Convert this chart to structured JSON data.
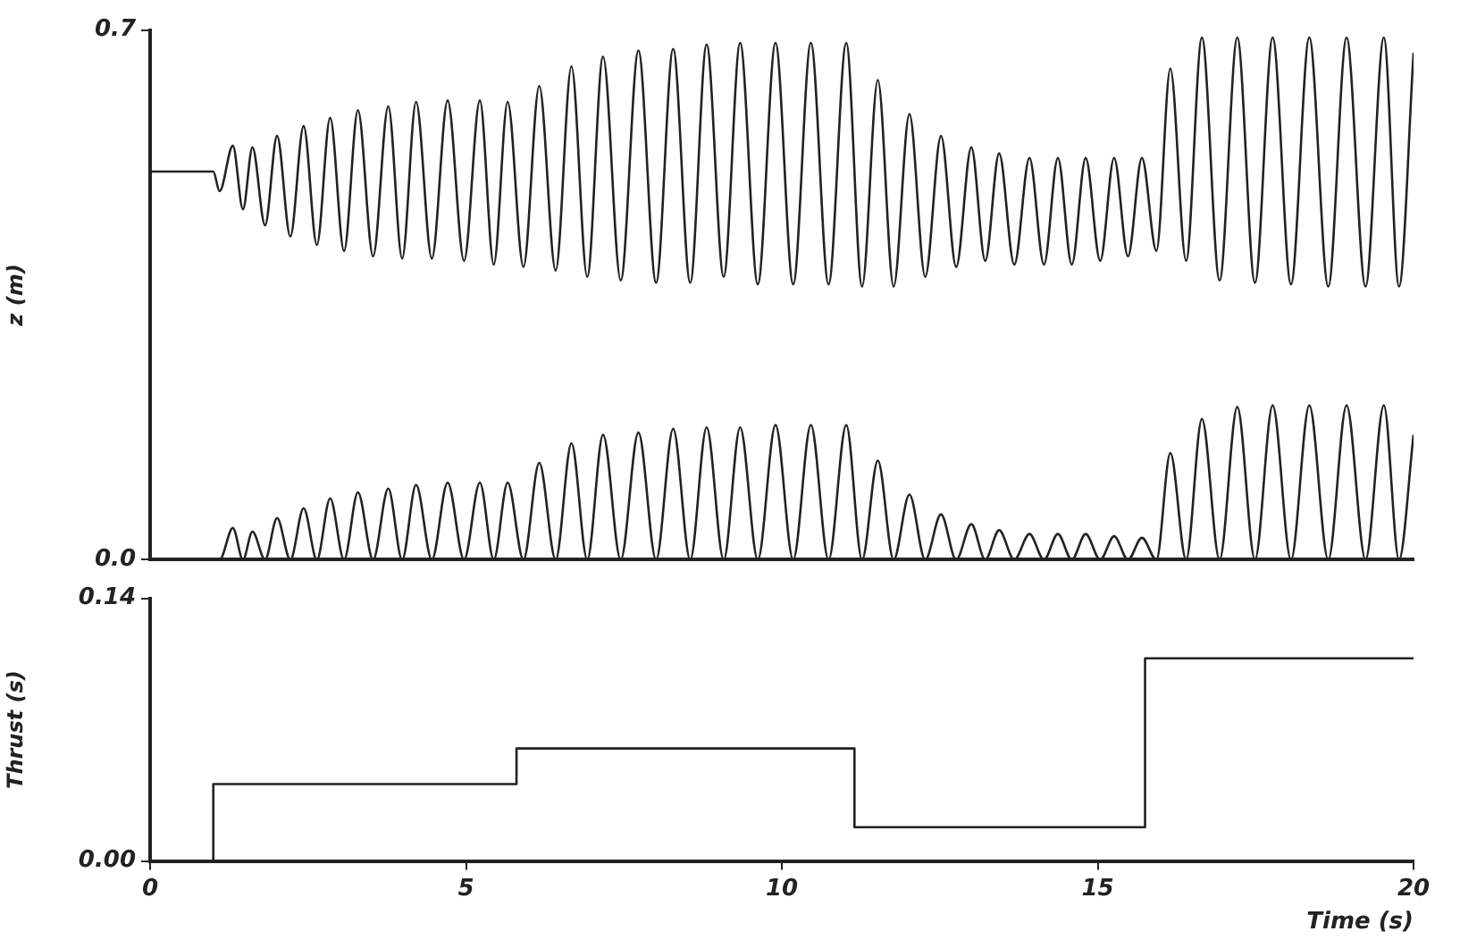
{
  "chart_data": [
    {
      "type": "line",
      "ylabel": "z (m)",
      "xlim": [
        0,
        20
      ],
      "xticks": [
        0,
        5,
        10,
        15,
        20
      ],
      "ylim": [
        0,
        0.7
      ],
      "yticks": [
        {
          "value": 0,
          "label": "0.0"
        },
        {
          "value": 0.7,
          "label": "0.7"
        }
      ],
      "tick_labels": "y",
      "marker": "none",
      "line_style": "solid",
      "series": [
        {
          "color": "#222222",
          "x": [
            0,
            1.0,
            1.1,
            1.31,
            1.47,
            1.62,
            1.82,
            2.01,
            2.22,
            2.43,
            2.64,
            2.85,
            3.07,
            3.29,
            3.53,
            3.77,
            3.99,
            4.21,
            4.46,
            4.71,
            4.97,
            5.22,
            5.44,
            5.66,
            5.91,
            6.16,
            6.42,
            6.67,
            6.92,
            7.17,
            7.45,
            7.73,
            8.01,
            8.28,
            8.55,
            8.81,
            9.08,
            9.34,
            9.62,
            9.9,
            10.18,
            10.46,
            10.74,
            11.02,
            11.27,
            11.52,
            11.77,
            12.02,
            12.27,
            12.52,
            12.76,
            13.0,
            13.22,
            13.44,
            13.68,
            13.92,
            14.15,
            14.37,
            14.59,
            14.81,
            15.04,
            15.26,
            15.48,
            15.7,
            15.93,
            16.15,
            16.4,
            16.65,
            16.93,
            17.21,
            17.49,
            17.77,
            18.06,
            18.35,
            18.65,
            18.94,
            19.24,
            19.53,
            19.77,
            20
          ],
          "values": [
            0.513,
            0.513,
            0.487,
            0.547,
            0.463,
            0.545,
            0.442,
            0.56,
            0.427,
            0.573,
            0.416,
            0.584,
            0.408,
            0.594,
            0.401,
            0.599,
            0.398,
            0.605,
            0.398,
            0.607,
            0.395,
            0.607,
            0.39,
            0.605,
            0.387,
            0.626,
            0.382,
            0.652,
            0.374,
            0.665,
            0.369,
            0.673,
            0.366,
            0.675,
            0.366,
            0.681,
            0.374,
            0.683,
            0.364,
            0.683,
            0.364,
            0.683,
            0.364,
            0.683,
            0.361,
            0.634,
            0.361,
            0.589,
            0.374,
            0.56,
            0.387,
            0.545,
            0.395,
            0.537,
            0.39,
            0.531,
            0.39,
            0.531,
            0.39,
            0.531,
            0.395,
            0.531,
            0.401,
            0.531,
            0.408,
            0.649,
            0.395,
            0.69,
            0.369,
            0.69,
            0.366,
            0.69,
            0.364,
            0.69,
            0.361,
            0.69,
            0.361,
            0.69,
            0.361,
            0.67
          ]
        },
        {
          "color": "#222222",
          "x": [
            0,
            1.1,
            1.31,
            1.47,
            1.62,
            1.82,
            2.01,
            2.22,
            2.43,
            2.64,
            2.85,
            3.07,
            3.29,
            3.53,
            3.77,
            3.99,
            4.21,
            4.46,
            4.71,
            4.97,
            5.22,
            5.44,
            5.66,
            5.91,
            6.16,
            6.42,
            6.67,
            6.92,
            7.17,
            7.45,
            7.73,
            8.01,
            8.28,
            8.55,
            8.81,
            9.08,
            9.34,
            9.62,
            9.9,
            10.18,
            10.46,
            10.74,
            11.02,
            11.27,
            11.52,
            11.77,
            12.02,
            12.27,
            12.52,
            12.76,
            13.0,
            13.22,
            13.44,
            13.68,
            13.92,
            14.15,
            14.37,
            14.59,
            14.81,
            15.04,
            15.26,
            15.48,
            15.7,
            15.93,
            16.15,
            16.4,
            16.65,
            16.93,
            17.21,
            17.49,
            17.77,
            18.06,
            18.35,
            18.65,
            18.94,
            19.24,
            19.53,
            19.77,
            20
          ],
          "values": [
            0,
            0,
            0.042,
            0,
            0.037,
            0,
            0.055,
            0,
            0.068,
            0,
            0.081,
            0,
            0.089,
            0,
            0.094,
            0,
            0.099,
            0,
            0.102,
            0,
            0.102,
            0,
            0.102,
            0,
            0.128,
            0,
            0.154,
            0,
            0.165,
            0,
            0.168,
            0,
            0.173,
            0,
            0.175,
            0,
            0.175,
            0,
            0.178,
            0,
            0.178,
            0,
            0.178,
            0,
            0.131,
            0,
            0.086,
            0,
            0.06,
            0,
            0.047,
            0,
            0.039,
            0,
            0.034,
            0,
            0.034,
            0,
            0.034,
            0,
            0.031,
            0,
            0.029,
            0,
            0.141,
            0,
            0.186,
            0,
            0.202,
            0,
            0.204,
            0,
            0.204,
            0,
            0.204,
            0,
            0.204,
            0,
            0.165
          ]
        }
      ]
    },
    {
      "type": "step",
      "ylabel": "Thrust (s)",
      "xlabel": "Time (s)",
      "xlim": [
        0,
        20
      ],
      "xticks": [
        0,
        5,
        10,
        15,
        20
      ],
      "ylim": [
        0,
        0.14
      ],
      "yticks": [
        {
          "value": 0,
          "label": "0.00"
        },
        {
          "value": 0.14,
          "label": "0.14"
        }
      ],
      "marker": "none",
      "line_style": "solid",
      "series": [
        {
          "color": "#222222",
          "x": [
            0,
            1.0,
            5.8,
            11.15,
            15.75,
            20
          ],
          "values": [
            0,
            0.041,
            0.06,
            0.018,
            0.108,
            0.108
          ]
        }
      ]
    }
  ]
}
